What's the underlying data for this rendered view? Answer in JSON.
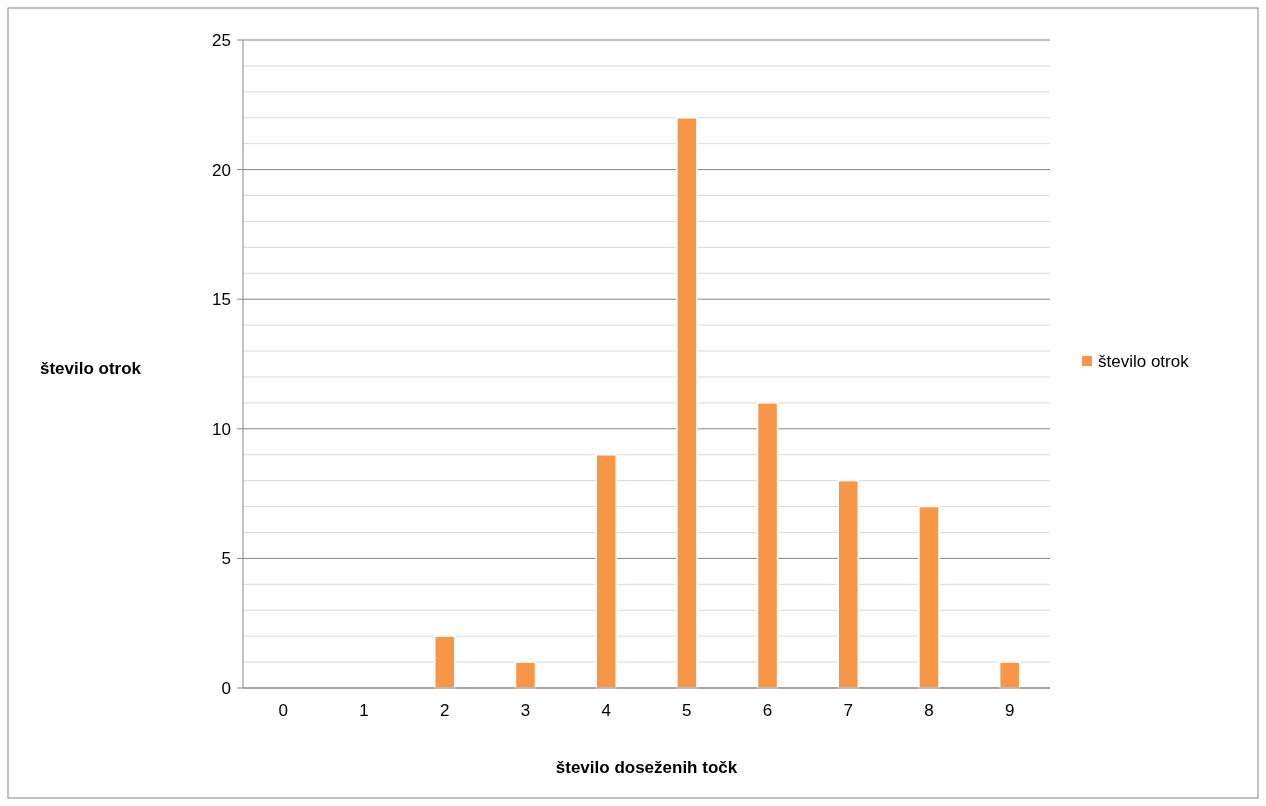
{
  "chart_data": {
    "type": "bar",
    "xlabel": "število doseženih točk",
    "ylabel": "število otrok",
    "categories": [
      "0",
      "1",
      "2",
      "3",
      "4",
      "5",
      "6",
      "7",
      "8",
      "9"
    ],
    "series": [
      {
        "name": "število otrok",
        "color": "#f79646",
        "values": [
          0,
          0,
          2,
          1,
          9,
          22,
          11,
          8,
          7,
          1
        ]
      }
    ],
    "ylim": [
      0,
      25
    ],
    "yticks": [
      0,
      {
        "value": 1,
        "label": null
      },
      {
        "value": 2,
        "label": null
      },
      {
        "value": 3,
        "label": null
      },
      {
        "value": 4,
        "label": null
      },
      5,
      {
        "value": 6,
        "label": null
      },
      {
        "value": 7,
        "label": null
      },
      {
        "value": 8,
        "label": null
      },
      {
        "value": 9,
        "label": null
      },
      10,
      {
        "value": 11,
        "label": null
      },
      {
        "value": 12,
        "label": null
      },
      {
        "value": 13,
        "label": null
      },
      {
        "value": 14,
        "label": null
      },
      15,
      {
        "value": 16,
        "label": null
      },
      {
        "value": 17,
        "label": null
      },
      {
        "value": 18,
        "label": null
      },
      {
        "value": 19,
        "label": null
      },
      20,
      {
        "value": 21,
        "label": null
      },
      {
        "value": 22,
        "label": null
      },
      {
        "value": 23,
        "label": null
      },
      {
        "value": 24,
        "label": null
      },
      25
    ],
    "grid": "y",
    "legend": "right"
  }
}
